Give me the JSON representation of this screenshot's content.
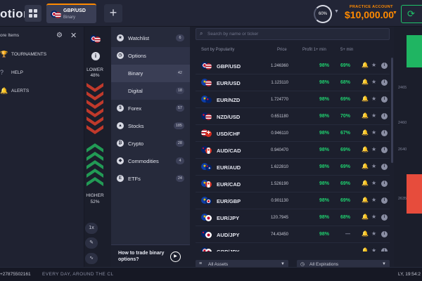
{
  "topbar": {
    "logo_text": "otion",
    "asset_tab": {
      "symbol": "GBP/USD",
      "type": "Binary"
    },
    "new_tab": "+",
    "gauge_value": "60%",
    "account_label": "PRACTICE ACCOUNT",
    "balance": "$10,000.00"
  },
  "left_menu": {
    "header": "ore Items",
    "items": [
      {
        "label": "TOURNAMENTS",
        "icon": "trophy-icon"
      },
      {
        "label": "HELP",
        "icon": "help-icon"
      },
      {
        "label": "ALERTS",
        "icon": "bell-icon"
      }
    ]
  },
  "strip": {
    "lower_label": "LOWER",
    "lower_pct": "48%",
    "higher_label": "HIGHER",
    "higher_pct": "52%",
    "zoom_label": "1x"
  },
  "categories": [
    {
      "label": "Watchlist",
      "count": "6",
      "icon": "watchlist-icon"
    },
    {
      "label": "Options",
      "count": "",
      "icon": "options-icon"
    },
    {
      "label": "Binary",
      "count": "42",
      "icon": ""
    },
    {
      "label": "Digital",
      "count": "18",
      "icon": ""
    },
    {
      "label": "Forex",
      "count": "57",
      "icon": "forex-icon"
    },
    {
      "label": "Stocks",
      "count": "185",
      "icon": "stocks-icon"
    },
    {
      "label": "Crypto",
      "count": "28",
      "icon": "crypto-icon"
    },
    {
      "label": "Commodities",
      "count": "4",
      "icon": "commodities-icon"
    },
    {
      "label": "ETFs",
      "count": "24",
      "icon": "etfs-icon"
    }
  ],
  "promo": {
    "text": "How to trade binary options?"
  },
  "asset_list": {
    "search_placeholder": "Search by name or ticker",
    "columns": {
      "sort": "Sort by Popularity",
      "price": "Price",
      "profit1": "Profit 1+ min",
      "profit5": "5+ min"
    },
    "rows": [
      {
        "symbol": "GBP/USD",
        "price": "1.246360",
        "p1": "98%",
        "p5": "69%",
        "flags": [
          "uk",
          "us"
        ]
      },
      {
        "symbol": "EUR/USD",
        "price": "1.123110",
        "p1": "98%",
        "p5": "68%",
        "flags": [
          "eu",
          "us"
        ]
      },
      {
        "symbol": "EUR/NZD",
        "price": "1.724770",
        "p1": "98%",
        "p5": "69%",
        "flags": [
          "eu",
          "nz"
        ]
      },
      {
        "symbol": "NZD/USD",
        "price": "0.651180",
        "p1": "98%",
        "p5": "70%",
        "flags": [
          "nz",
          "us"
        ]
      },
      {
        "symbol": "USD/CHF",
        "price": "0.946110",
        "p1": "98%",
        "p5": "67%",
        "flags": [
          "us",
          "ch"
        ]
      },
      {
        "symbol": "AUD/CAD",
        "price": "0.940470",
        "p1": "98%",
        "p5": "69%",
        "flags": [
          "au",
          "ca"
        ]
      },
      {
        "symbol": "EUR/AUD",
        "price": "1.622810",
        "p1": "98%",
        "p5": "69%",
        "flags": [
          "eu",
          "au"
        ]
      },
      {
        "symbol": "EUR/CAD",
        "price": "1.526190",
        "p1": "98%",
        "p5": "69%",
        "flags": [
          "eu",
          "ca"
        ]
      },
      {
        "symbol": "EUR/GBP",
        "price": "0.901130",
        "p1": "98%",
        "p5": "69%",
        "flags": [
          "eu",
          "uk"
        ]
      },
      {
        "symbol": "EUR/JPY",
        "price": "120.7945",
        "p1": "98%",
        "p5": "68%",
        "flags": [
          "eu",
          "jp"
        ]
      },
      {
        "symbol": "AUD/JPY",
        "price": "74.43450",
        "p1": "98%",
        "p5": "—",
        "flags": [
          "au",
          "jp"
        ]
      },
      {
        "symbol": "GBP/JPY",
        "price": "",
        "p1": "",
        "p5": "",
        "flags": [
          "uk",
          "jp"
        ]
      }
    ],
    "filter_assets": "All Assets",
    "filter_expirations": "All Expirations"
  },
  "right_axis": {
    "ticks": [
      "2465",
      "2460",
      "2645",
      "2640",
      "2635"
    ]
  },
  "footer": {
    "phone": "+27875502161",
    "message": "EVERY DAY, AROUND THE CL",
    "time": "LY, 19:54:2"
  },
  "colors": {
    "accent": "#ff8a00",
    "profit_green": "#1fd16f",
    "higher_green": "#1fb562",
    "lower_red": "#e74c3c"
  }
}
